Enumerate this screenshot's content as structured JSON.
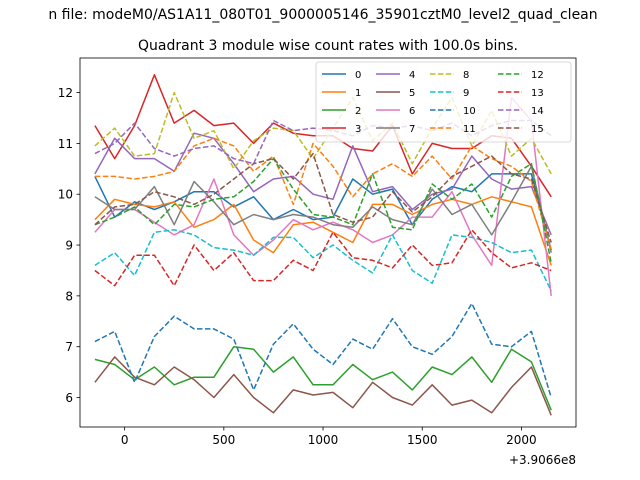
{
  "chart_data": {
    "type": "line",
    "suptitle": "n file: modeM0/AS1A11_080T01_9000005146_35901cztM0_level2_quad_clean",
    "title": "Quadrant 3 module wise count rates with 100.0s bins.",
    "offset_label": "+3.9066e8",
    "xlabel": "",
    "ylabel": "",
    "xlim": [
      -225,
      2275
    ],
    "ylim": [
      5.42,
      12.68
    ],
    "x_ticks": [
      0,
      500,
      1000,
      1500,
      2000
    ],
    "y_ticks": [
      6,
      7,
      8,
      9,
      10,
      11,
      12
    ],
    "x_tick_labels": [
      "0",
      "500",
      "1000",
      "1500",
      "2000"
    ],
    "y_tick_labels": [
      "6",
      "7",
      "8",
      "9",
      "10",
      "11",
      "12"
    ],
    "legend_position": "top-right",
    "x": [
      -150,
      -50,
      50,
      150,
      250,
      350,
      450,
      550,
      650,
      750,
      850,
      950,
      1050,
      1150,
      1250,
      1350,
      1450,
      1550,
      1650,
      1750,
      1850,
      1950,
      2050,
      2150
    ],
    "series": [
      {
        "name": "0",
        "color": "#1f77b4",
        "dash": "solid",
        "values": [
          10.35,
          9.55,
          9.85,
          9.7,
          9.85,
          10.05,
          10.05,
          9.75,
          9.95,
          9.5,
          9.7,
          9.5,
          9.55,
          10.3,
          10.0,
          10.1,
          9.4,
          9.9,
          10.15,
          10.05,
          10.4,
          10.4,
          10.4,
          8.9
        ]
      },
      {
        "name": "1",
        "color": "#ff7f0e",
        "dash": "solid",
        "values": [
          9.5,
          9.9,
          9.8,
          9.75,
          9.85,
          9.35,
          9.5,
          9.8,
          9.1,
          8.85,
          9.4,
          9.45,
          9.25,
          9.05,
          9.8,
          9.8,
          9.6,
          9.8,
          9.9,
          9.8,
          9.95,
          9.85,
          9.75,
          8.6
        ]
      },
      {
        "name": "2",
        "color": "#2ca02c",
        "dash": "solid",
        "values": [
          6.75,
          6.65,
          6.35,
          6.6,
          6.25,
          6.4,
          6.4,
          7.0,
          6.95,
          6.5,
          6.8,
          6.25,
          6.25,
          6.65,
          6.35,
          6.5,
          6.15,
          6.6,
          6.45,
          6.8,
          6.3,
          6.95,
          6.7,
          5.75
        ]
      },
      {
        "name": "3",
        "color": "#d62728",
        "dash": "solid",
        "values": [
          11.35,
          10.7,
          11.35,
          12.35,
          11.4,
          11.65,
          11.35,
          11.4,
          11.0,
          11.4,
          11.2,
          11.15,
          11.15,
          10.9,
          10.85,
          11.35,
          10.4,
          11.0,
          10.9,
          10.9,
          11.15,
          11.1,
          10.55,
          9.95
        ]
      },
      {
        "name": "4",
        "color": "#9467bd",
        "dash": "solid",
        "values": [
          10.4,
          11.1,
          10.7,
          10.7,
          10.45,
          11.2,
          11.1,
          10.6,
          10.05,
          10.3,
          10.35,
          10.0,
          9.9,
          10.95,
          10.05,
          10.15,
          9.7,
          10.0,
          10.1,
          10.75,
          10.3,
          10.1,
          10.15,
          9.2
        ]
      },
      {
        "name": "5",
        "color": "#8c564b",
        "dash": "solid",
        "values": [
          6.3,
          6.8,
          6.4,
          6.25,
          6.6,
          6.35,
          6.0,
          6.45,
          6.0,
          5.7,
          6.15,
          6.05,
          6.1,
          5.8,
          6.3,
          6.0,
          5.85,
          6.25,
          5.85,
          5.95,
          5.7,
          6.2,
          6.6,
          5.65
        ]
      },
      {
        "name": "6",
        "color": "#e377c2",
        "dash": "solid",
        "values": [
          9.25,
          9.7,
          9.7,
          9.45,
          9.2,
          9.4,
          10.3,
          9.2,
          8.8,
          9.1,
          9.5,
          9.3,
          9.45,
          9.3,
          9.05,
          9.2,
          9.55,
          9.55,
          10.05,
          9.2,
          8.6,
          11.9,
          11.45,
          8.0
        ]
      },
      {
        "name": "7",
        "color": "#7f7f7f",
        "dash": "solid",
        "values": [
          9.95,
          9.7,
          9.7,
          10.15,
          9.4,
          10.25,
          9.85,
          9.4,
          9.6,
          9.5,
          9.6,
          9.55,
          9.4,
          9.35,
          9.75,
          9.5,
          9.4,
          10.1,
          9.6,
          9.8,
          9.2,
          9.85,
          10.55,
          8.85
        ]
      },
      {
        "name": "8",
        "color": "#bcbd22",
        "dash": "dashed",
        "values": [
          10.95,
          11.3,
          10.75,
          10.8,
          12.0,
          11.1,
          11.25,
          10.5,
          11.05,
          11.3,
          11.25,
          10.7,
          11.3,
          11.9,
          11.05,
          11.4,
          10.6,
          11.3,
          11.9,
          10.95,
          11.65,
          10.75,
          11.1,
          10.4
        ]
      },
      {
        "name": "9",
        "color": "#17becf",
        "dash": "dashed",
        "values": [
          8.6,
          8.85,
          8.4,
          9.25,
          9.3,
          9.2,
          8.95,
          8.9,
          8.8,
          9.15,
          9.15,
          8.75,
          9.0,
          8.7,
          8.45,
          9.2,
          8.5,
          8.25,
          9.2,
          9.15,
          9.05,
          8.85,
          8.9,
          8.1
        ]
      },
      {
        "name": "10",
        "color": "#1f77b4",
        "dash": "dashed",
        "values": [
          7.1,
          7.3,
          6.3,
          7.2,
          7.6,
          7.35,
          7.35,
          7.15,
          6.15,
          7.05,
          7.45,
          6.95,
          6.65,
          7.15,
          6.95,
          7.55,
          7.0,
          6.85,
          7.2,
          7.85,
          7.05,
          7.0,
          7.3,
          6.0
        ]
      },
      {
        "name": "11",
        "color": "#ff7f0e",
        "dash": "dashed",
        "values": [
          10.35,
          10.35,
          10.3,
          10.35,
          10.45,
          10.95,
          11.1,
          10.95,
          10.45,
          10.75,
          9.8,
          11.0,
          10.55,
          9.95,
          10.4,
          10.6,
          10.35,
          10.75,
          10.3,
          10.95,
          10.7,
          10.55,
          10.25,
          8.9
        ]
      },
      {
        "name": "12",
        "color": "#2ca02c",
        "dash": "dashed",
        "values": [
          9.4,
          9.55,
          9.75,
          9.4,
          9.8,
          9.75,
          9.9,
          9.95,
          10.25,
          10.7,
          10.1,
          9.6,
          9.55,
          9.4,
          10.4,
          9.35,
          9.3,
          10.2,
          9.9,
          10.2,
          9.55,
          10.35,
          10.6,
          8.65
        ]
      },
      {
        "name": "13",
        "color": "#d62728",
        "dash": "dashed",
        "values": [
          8.5,
          8.2,
          8.8,
          8.8,
          8.2,
          9.0,
          8.5,
          8.85,
          8.3,
          8.3,
          8.7,
          8.5,
          9.25,
          8.75,
          8.7,
          8.55,
          9.0,
          8.6,
          8.65,
          9.3,
          8.85,
          8.55,
          8.65,
          8.5
        ]
      },
      {
        "name": "14",
        "color": "#9467bd",
        "dash": "dashed",
        "values": [
          10.8,
          11.0,
          11.4,
          10.9,
          10.75,
          10.9,
          10.95,
          10.7,
          10.6,
          11.45,
          11.25,
          11.3,
          11.25,
          11.15,
          11.35,
          11.3,
          11.35,
          11.25,
          11.4,
          11.15,
          11.35,
          11.45,
          11.45,
          11.15
        ]
      },
      {
        "name": "15",
        "color": "#8c564b",
        "dash": "dashed",
        "values": [
          9.4,
          9.75,
          9.8,
          10.05,
          9.95,
          9.8,
          10.0,
          10.3,
          10.6,
          10.7,
          10.3,
          10.8,
          9.6,
          9.45,
          9.55,
          10.05,
          9.65,
          9.95,
          10.35,
          10.55,
          10.75,
          10.4,
          10.3,
          9.05
        ]
      }
    ]
  }
}
